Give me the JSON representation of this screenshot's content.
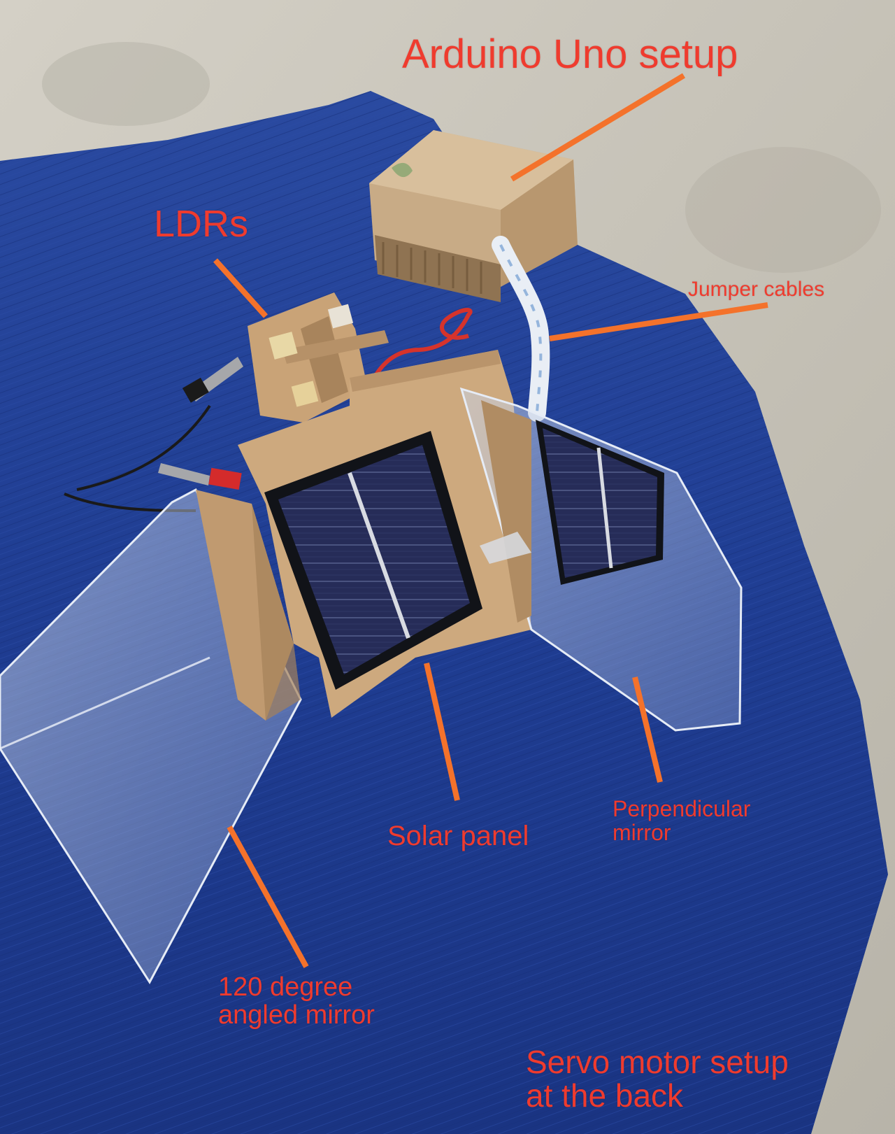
{
  "labels": {
    "arduino": "Arduino Uno setup",
    "ldrs": "LDRs",
    "jumper": "Jumper cables",
    "solar": "Solar panel",
    "perpendicular_line1": "Perpendicular",
    "perpendicular_line2": "mirror",
    "angled_line1": "120 degree",
    "angled_line2": "angled mirror",
    "servo_line1": "Servo motor setup",
    "servo_line2": "at the back"
  },
  "colors": {
    "label_text": "#ef3b2e",
    "pointer_line": "#f4722b",
    "cloth": "#1e3a8a",
    "floor": "#c9c5bb",
    "cardboard": "#c8a57c",
    "solar_cell": "#252a55"
  }
}
